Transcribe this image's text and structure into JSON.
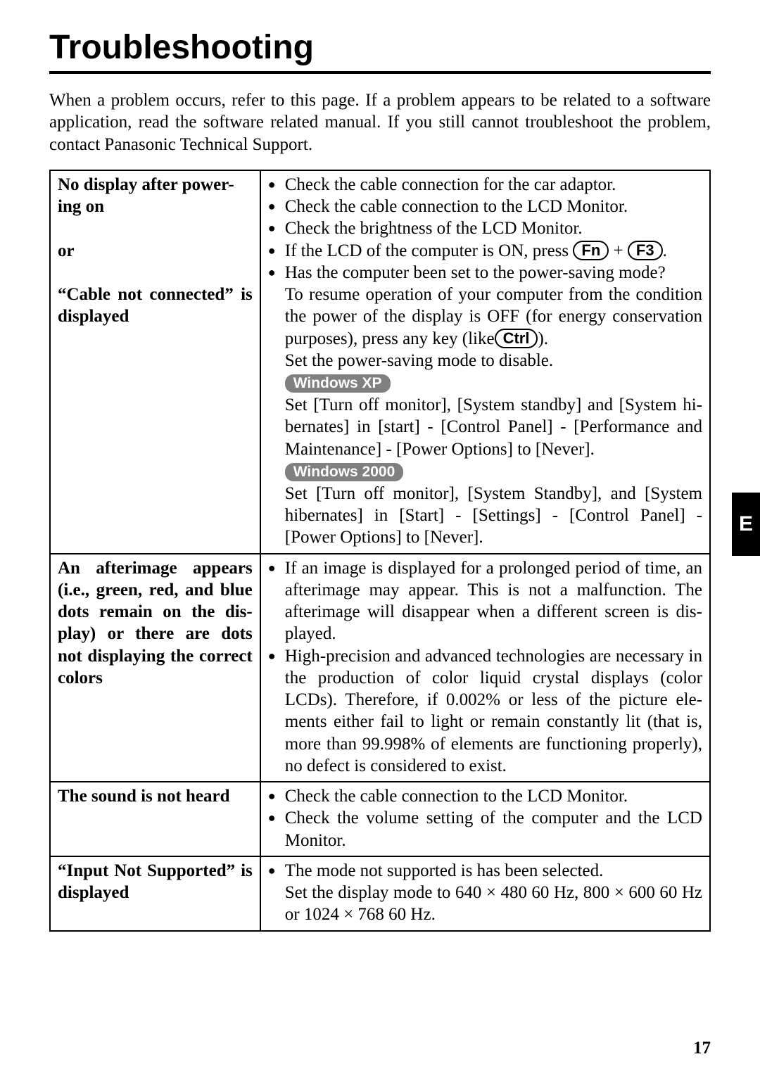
{
  "title": "Troubleshooting",
  "intro": "When a problem occurs, refer to this page.  If a problem appears to be related to a software application, read the software related manual.  If you still cannot troubleshoot the problem, contact Panasonic Technical Support.",
  "side_tab": "E",
  "page_number": "17",
  "keys": {
    "fn": "Fn",
    "f3": "F3",
    "ctrl": "Ctrl"
  },
  "os_badges": {
    "xp": "Windows XP",
    "w2k": "Windows 2000"
  },
  "rows": {
    "r1": {
      "problem_l1": "No display after power-",
      "problem_l2": "ing on",
      "problem_l3": "or",
      "problem_l4": "“Cable not connected” is displayed",
      "b1": "Check the cable connection for the car adaptor.",
      "b2": "Check the cable connection to the LCD Monitor.",
      "b3": "Check the brightness of the LCD Monitor.",
      "b4a": "If the LCD of the computer is ON, press ",
      "b4b": " + ",
      "b4c": ".",
      "b5": "Has the computer been set to the power-saving mode?",
      "c1": "To resume operation of your computer from the condition the power of the display is OFF (for energy conservation purposes), press any key (like",
      "c1b": ").",
      "c2": "Set the power-saving mode to disable.",
      "c3": "Set [Turn off monitor], [System standby] and [System hi­bernates] in [start] - [Control Panel] - [Performance and Maintenance] - [Power Options] to [Never].",
      "c4": "Set [Turn off monitor], [System Standby], and [System hibernates] in [Start] - [Settings] - [Control Panel] - [Power Options] to [Never]."
    },
    "r2": {
      "problem": "An afterimage appears (i.e., green, red, and blue dots remain on the dis­play) or there are dots not displaying the cor­rect colors",
      "b1": "If an image is displayed for a prolonged period of time, an afterimage may appear.  This is not a malfunction.  The afterimage will disappear when a different screen is dis­played.",
      "b2": "High-precision and advanced technologies are necessary in the production of color liquid crystal displays (color LCDs).  Therefore, if 0.002% or less of the picture ele­ments either fail to light or remain constantly lit (that is, more than 99.998% of elements are functioning properly), no defect is considered to exist."
    },
    "r3": {
      "problem": "The sound is not heard",
      "b1": "Check the cable connection to the LCD Monitor.",
      "b2": "Check the volume setting of the computer and the LCD Monitor."
    },
    "r4": {
      "problem": "“Input Not Supported” is displayed",
      "b1": "The mode not supported is has been selected.",
      "c1": "Set the display mode to 640 × 480  60 Hz, 800 × 600 60 Hz or 1024 × 768 60 Hz."
    }
  }
}
